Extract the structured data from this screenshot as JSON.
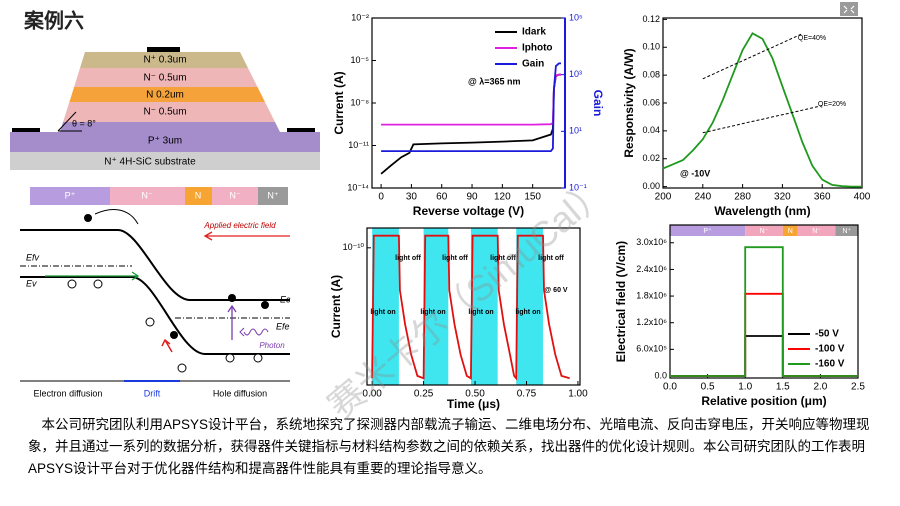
{
  "title": "案例六",
  "watermark": "赛米卡尔（SimuCal）",
  "structure": {
    "layers": [
      "N⁺ 0.3um",
      "N⁻ 0.5um",
      "N  0.2um",
      "N⁻ 0.5um",
      "P⁺ 3um",
      "N⁺ 4H-SiC substrate"
    ],
    "angle": "θ = 8°"
  },
  "band_diagram": {
    "regions": [
      "P⁺",
      "N⁻",
      "N",
      "N⁻",
      "N⁺"
    ],
    "field": "Applied electric field",
    "levels": [
      "Efv",
      "Ev",
      "Ec",
      "Efe"
    ],
    "photon": "Photon",
    "zones": [
      "Electron diffusion",
      "Drift",
      "Hole diffusion"
    ]
  },
  "paragraph": "本公司研究团队利用APSYS设计平台，系统地探究了探测器内部载流子输运、二维电场分布、光暗电流、反向击穿电压，开关响应等物理现象，并且通过一系列的数据分析，获得器件关键指标与材料结构参数之间的依赖关系，找出器件的优化设计规则。本公司研究团队的工作表明APSYS设计平台对于优化器件结构和提高器件性能具有重要的理论指导意义。",
  "chart_data": [
    {
      "type": "line",
      "x_label": "Reverse voltage (V)",
      "y_label": "Current (A)",
      "y2_label": "Gain",
      "y2_color": "#1a1adb",
      "log_y": true,
      "log_y2": true,
      "legend": "upper right",
      "annotations": [
        "@ λ=365 nm"
      ],
      "x": [
        0,
        10,
        20,
        28,
        32,
        60,
        90,
        120,
        150,
        168,
        170,
        171,
        173,
        176,
        178
      ],
      "series": [
        {
          "name": "Idark",
          "color": "#000000",
          "values": [
            1e-13,
            4e-13,
            1.5e-12,
            3e-12,
            1.2e-11,
            1.4e-11,
            1.6e-11,
            1.9e-11,
            2.3e-11,
            6e-11,
            1.5e-10,
            1e-07,
            8e-07,
            1e-06,
            1e-06
          ]
        },
        {
          "name": "Iphoto",
          "color": "#e020e0",
          "values": [
            3e-10,
            3e-10,
            3e-10,
            3e-10,
            3e-10,
            3e-10,
            3e-10,
            3e-10,
            3e-10,
            3.2e-10,
            4e-10,
            1e-07,
            9e-07,
            1e-06,
            1e-06
          ]
        },
        {
          "name": "Gain",
          "color": "#1a1adb",
          "axis": "y2",
          "values": [
            2,
            2,
            2,
            2,
            2,
            2,
            2,
            2,
            2,
            2,
            2.5,
            300,
            2000,
            2500,
            2500
          ]
        }
      ],
      "xlim": [
        -9,
        182
      ],
      "xticks": [
        0,
        30,
        60,
        90,
        120,
        150
      ],
      "ylim": [
        1e-14,
        0.01
      ],
      "yticks": [
        {
          "value": 1e-14,
          "label": "10⁻¹⁴"
        },
        {
          "value": 1e-11,
          "label": "10⁻¹¹"
        },
        {
          "value": 1e-08,
          "label": "10⁻⁸"
        },
        {
          "value": 1e-05,
          "label": "10⁻⁵"
        },
        {
          "value": 0.01,
          "label": "10⁻²"
        }
      ],
      "y2lim": [
        0.1,
        100000
      ],
      "y2ticks": [
        {
          "value": 0.1,
          "label": "10⁻¹"
        },
        {
          "value": 10,
          "label": "10¹"
        },
        {
          "value": 1000,
          "label": "10³"
        },
        {
          "value": 100000,
          "label": "10⁵"
        }
      ]
    },
    {
      "type": "line",
      "x_label": "Wavelength (nm)",
      "y_label": "Responsivity (A/W)",
      "annotations": [
        "@ -10V"
      ],
      "x": [
        200,
        210,
        220,
        230,
        240,
        250,
        260,
        270,
        280,
        290,
        300,
        310,
        320,
        330,
        340,
        350,
        360,
        370,
        380,
        390,
        400
      ],
      "series": [
        {
          "color": "#1f9a1f",
          "values": [
            0.013,
            0.016,
            0.019,
            0.026,
            0.034,
            0.046,
            0.062,
            0.08,
            0.098,
            0.11,
            0.106,
            0.092,
            0.072,
            0.052,
            0.032,
            0.015,
            0.005,
            0.0012,
            0.0003,
            0,
            0
          ]
        },
        {
          "name": "QE=40%",
          "color": "#000000",
          "dash": true,
          "values": [
            null,
            null,
            null,
            null,
            0.0774,
            0.0806,
            0.0839,
            0.0871,
            0.0903,
            0.0935,
            0.0968,
            0.1,
            0.1032,
            0.1065,
            0.1097,
            null,
            null,
            null,
            null,
            null,
            null
          ]
        },
        {
          "name": "QE=20%",
          "color": "#000000",
          "dash": true,
          "values": [
            null,
            null,
            null,
            null,
            0.0387,
            0.0403,
            0.0419,
            0.0435,
            0.0452,
            0.0468,
            0.0484,
            0.05,
            0.0516,
            0.0532,
            0.0548,
            0.0565,
            0.0581,
            null,
            null,
            null,
            null
          ]
        }
      ],
      "xlim": [
        200,
        400
      ],
      "xticks": [
        200,
        240,
        280,
        320,
        360,
        400
      ],
      "ylim": [
        -0.001,
        0.121
      ],
      "yticks": [
        {
          "value": 0,
          "label": "0.00"
        },
        {
          "value": 0.02,
          "label": "0.02"
        },
        {
          "value": 0.04,
          "label": "0.04"
        },
        {
          "value": 0.06,
          "label": "0.06"
        },
        {
          "value": 0.08,
          "label": "0.08"
        },
        {
          "value": 0.1,
          "label": "0.10"
        },
        {
          "value": 0.12,
          "label": "0.12"
        }
      ]
    },
    {
      "type": "line",
      "x_label": "Time (μs)",
      "y_label": "Current (A)",
      "log_y": true,
      "color": "#e01010",
      "shade_color": "#3fe6f0",
      "annotations": [
        "light off",
        "light off",
        "light off",
        "light off",
        "light on",
        "light on",
        "light on",
        "light on",
        "@ 60 V"
      ],
      "shaded_regions": [
        [
          0,
          0.13
        ],
        [
          0.25,
          0.37
        ],
        [
          0.48,
          0.61
        ],
        [
          0.7,
          0.83
        ]
      ],
      "x": [
        0,
        0.008,
        0.13,
        0.135,
        0.16,
        0.19,
        0.22,
        0.25,
        0.258,
        0.37,
        0.375,
        0.4,
        0.43,
        0.46,
        0.48,
        0.488,
        0.61,
        0.615,
        0.64,
        0.67,
        0.69,
        0.7,
        0.708,
        0.83,
        0.835,
        0.86,
        0.89,
        0.92,
        0.96
      ],
      "values": [
        5e-15,
        2.5e-10,
        2.5e-10,
        4e-12,
        3e-13,
        3e-14,
        6e-15,
        5e-15,
        2.5e-10,
        2.5e-10,
        4e-12,
        3e-13,
        3e-14,
        6e-15,
        5e-15,
        2.5e-10,
        2.5e-10,
        4e-12,
        3e-13,
        3e-14,
        6e-15,
        5e-15,
        2.5e-10,
        2.5e-10,
        4e-12,
        3e-13,
        3e-14,
        6e-15,
        5e-15
      ],
      "xlim": [
        -0.025,
        1.01
      ],
      "xticks": [
        {
          "value": 0,
          "label": "0.00"
        },
        {
          "value": 0.25,
          "label": "0.25"
        },
        {
          "value": 0.5,
          "label": "0.50"
        },
        {
          "value": 0.75,
          "label": "0.75"
        },
        {
          "value": 1,
          "label": "1.00"
        }
      ],
      "ylim": [
        3e-15,
        4.5e-10
      ],
      "yticks": [
        {
          "value": 1e-10,
          "label": "10⁻¹⁰"
        }
      ]
    },
    {
      "type": "line",
      "x_label": "Relative position (μm)",
      "y_label": "Electrical field (V/cm)",
      "legend": "lower right",
      "layers": [
        "P⁺",
        "N⁻",
        "N",
        "N⁻",
        "N⁺"
      ],
      "layer_colors": [
        "#b89ce0",
        "#f2a6be",
        "#f6a533",
        "#f2a6be",
        "#9a9a9a"
      ],
      "layer_edges": [
        0,
        1,
        1.5,
        1.7,
        2.2,
        2.5
      ],
      "x": [
        0,
        1,
        1,
        1.5,
        1.5,
        2.5
      ],
      "series": [
        {
          "name": "-50 V",
          "color": "#000000",
          "values": [
            0,
            0,
            900000,
            900000,
            0,
            0
          ]
        },
        {
          "name": "-100 V",
          "color": "#ff0000",
          "values": [
            0,
            0,
            1850000,
            1850000,
            0,
            0
          ]
        },
        {
          "name": "-160 V",
          "color": "#1f9a1f",
          "values": [
            0,
            0,
            2900000,
            2900000,
            0,
            0
          ]
        }
      ],
      "xlim": [
        0,
        2.5
      ],
      "xticks": [
        {
          "value": 0,
          "label": "0.0"
        },
        {
          "value": 0.5,
          "label": "0.5"
        },
        {
          "value": 1,
          "label": "1.0"
        },
        {
          "value": 1.5,
          "label": "1.5"
        },
        {
          "value": 2,
          "label": "2.0"
        },
        {
          "value": 2.5,
          "label": "2.5"
        }
      ],
      "ylim": [
        -45000,
        3400000
      ],
      "yticks": [
        {
          "value": 0,
          "label": "0.0"
        },
        {
          "value": 600000,
          "label": "6.0x10⁵"
        },
        {
          "value": 1200000,
          "label": "1.2x10⁶"
        },
        {
          "value": 1800000,
          "label": "1.8x10⁶"
        },
        {
          "value": 2400000,
          "label": "2.4x10⁶"
        },
        {
          "value": 3000000,
          "label": "3.0x10⁶"
        }
      ]
    }
  ]
}
